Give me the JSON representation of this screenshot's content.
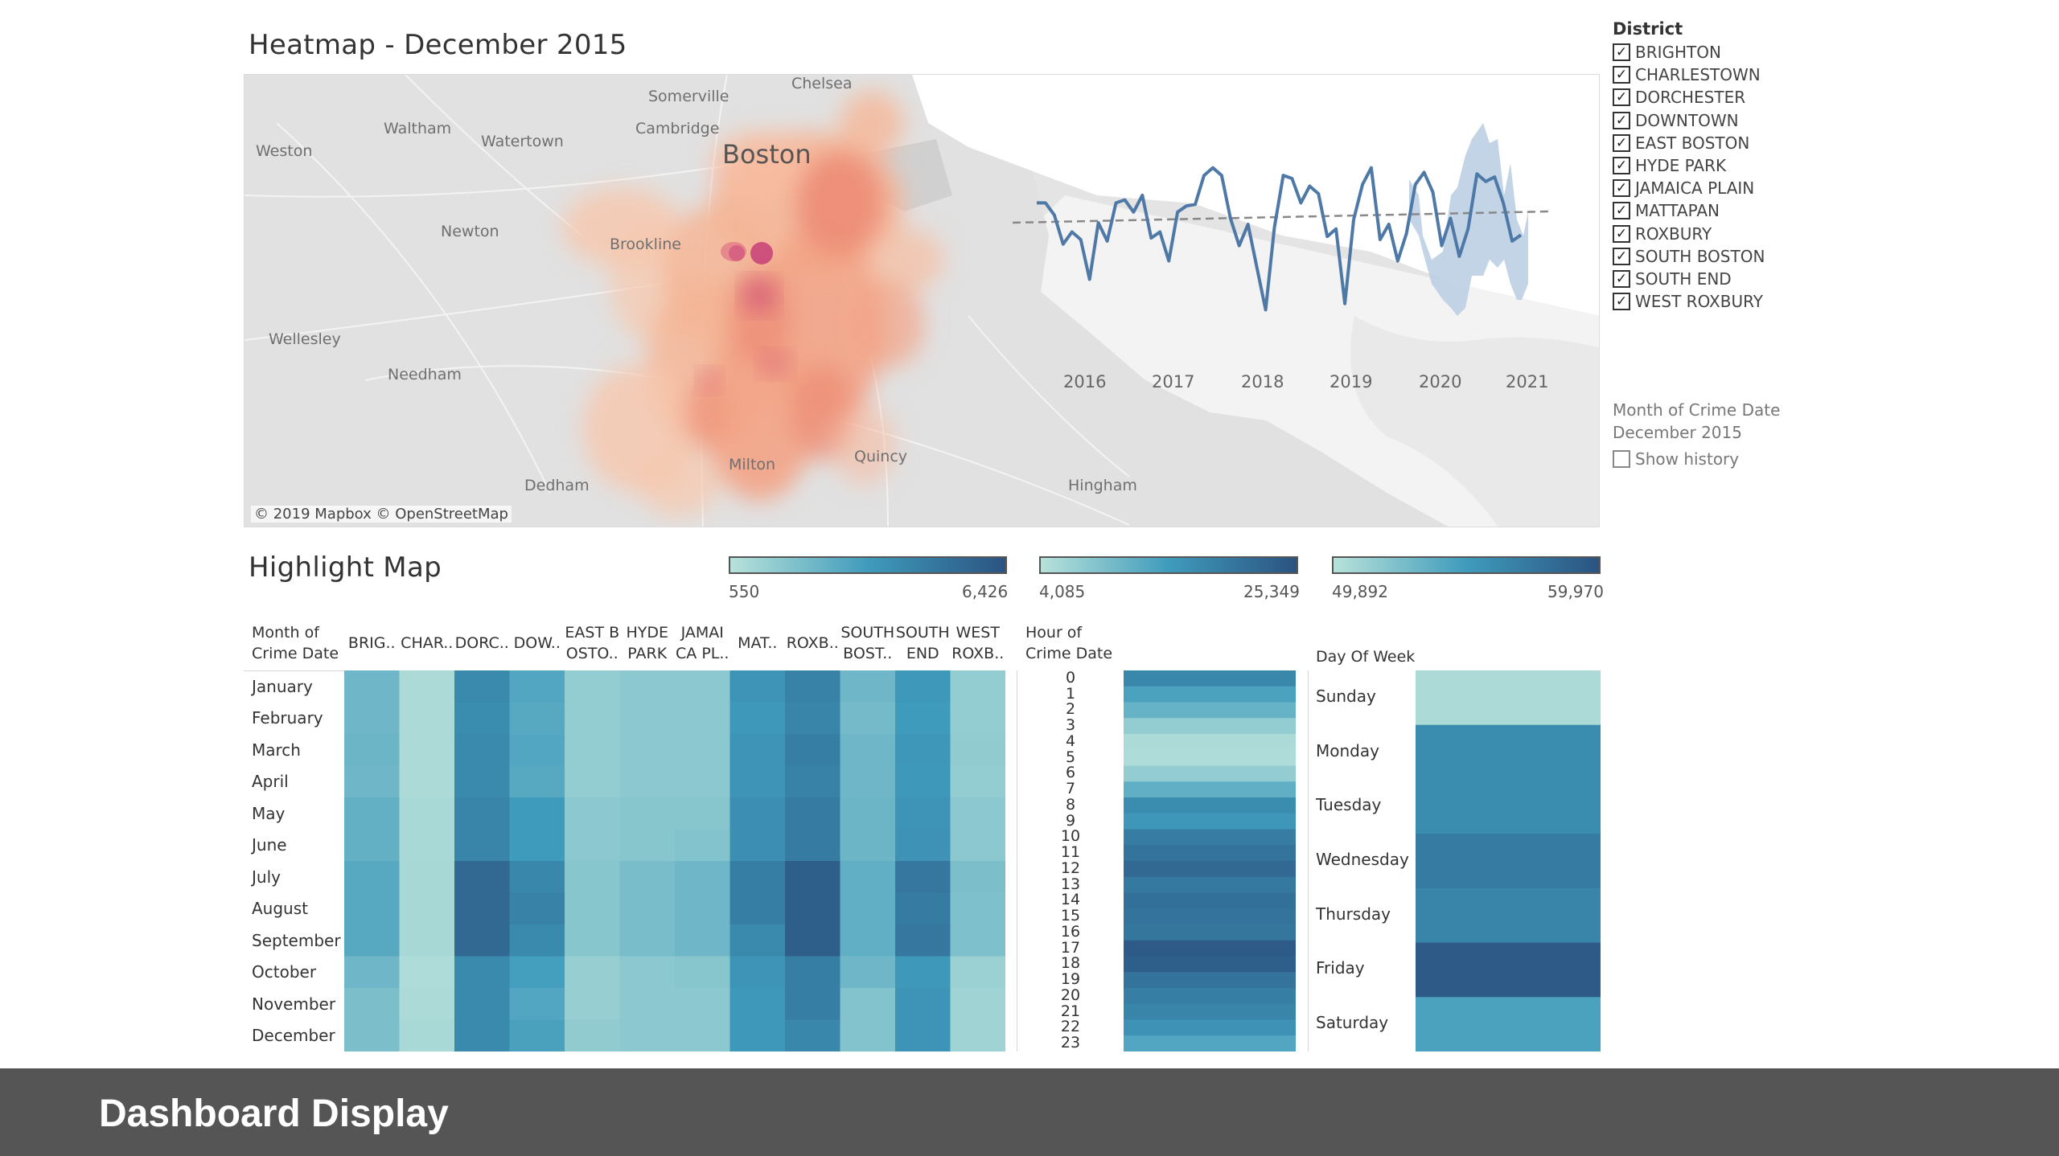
{
  "map_section": {
    "title": "Heatmap - December 2015",
    "attribution": "© 2019 Mapbox © OpenStreetMap",
    "places": {
      "chelsea": "Chelsea",
      "somerville": "Somerville",
      "waltham": "Waltham",
      "watertown": "Watertown",
      "cambridge": "Cambridge",
      "boston": "Boston",
      "weston": "Weston",
      "newton": "Newton",
      "brookline": "Brookline",
      "wellesley": "Wellesley",
      "needham": "Needham",
      "milton": "Milton",
      "quincy": "Quincy",
      "dedham": "Dedham",
      "hingham": "Hingham"
    },
    "trend_years": [
      "2016",
      "2017",
      "2018",
      "2019",
      "2020",
      "2021"
    ],
    "trend_values": [
      0.74,
      0.74,
      0.66,
      0.47,
      0.55,
      0.5,
      0.24,
      0.61,
      0.49,
      0.74,
      0.76,
      0.68,
      0.79,
      0.51,
      0.55,
      0.36,
      0.68,
      0.72,
      0.73,
      0.92,
      0.97,
      0.92,
      0.64,
      0.46,
      0.6,
      0.32,
      0.04,
      0.58,
      0.92,
      0.9,
      0.74,
      0.85,
      0.8,
      0.52,
      0.57,
      0.08,
      0.63,
      0.86,
      0.97,
      0.5,
      0.6,
      0.36,
      0.54,
      0.86,
      0.94,
      0.81,
      0.46,
      0.64,
      0.39,
      0.57,
      0.93,
      0.88,
      0.91,
      0.74,
      0.49,
      0.53
    ],
    "colors": {
      "trend_line": "#4e79a7",
      "trend_band": "#b9cde3",
      "trend_dashed": "#888888",
      "heat_low": "#f9c3a6",
      "heat_high": "#d2627f"
    }
  },
  "filter_panel": {
    "heading": "District",
    "districts": [
      "BRIGHTON",
      "CHARLESTOWN",
      "DORCHESTER",
      "DOWNTOWN",
      "EAST BOSTON",
      "HYDE PARK",
      "JAMAICA PLAIN",
      "MATTAPAN",
      "ROXBURY",
      "SOUTH BOSTON",
      "SOUTH END",
      "WEST ROXBURY"
    ],
    "check_mark": "✓",
    "month_label": "Month of Crime Date",
    "month_value": "December 2015",
    "show_history": "Show history"
  },
  "highlight": {
    "title": "Highlight Map",
    "legends": [
      {
        "min": "550",
        "max": "6,426"
      },
      {
        "min": "4,085",
        "max": "25,349"
      },
      {
        "min": "49,892",
        "max": "59,970"
      }
    ],
    "colors": {
      "light": "#b8e2da",
      "mid": "#3f9bbc",
      "dark": "#2b5381"
    },
    "month_header": [
      "Month of",
      "Crime Date"
    ],
    "district_headers": [
      [
        "BRIG.."
      ],
      [
        "CHAR.."
      ],
      [
        "DORC.."
      ],
      [
        "DOW.."
      ],
      [
        "EAST B",
        "OSTO.."
      ],
      [
        "HYDE",
        "PARK"
      ],
      [
        "JAMAI",
        "CA PL.."
      ],
      [
        "MAT.."
      ],
      [
        "ROXB.."
      ],
      [
        "SOUTH",
        "BOST.."
      ],
      [
        "SOUTH",
        "END"
      ],
      [
        "WEST",
        "ROXB.."
      ]
    ],
    "months": [
      "January",
      "February",
      "March",
      "April",
      "May",
      "June",
      "July",
      "August",
      "September",
      "October",
      "November",
      "December"
    ],
    "district_month_values": [
      [
        0.3,
        0.05,
        0.62,
        0.42,
        0.15,
        0.18,
        0.18,
        0.55,
        0.68,
        0.3,
        0.52,
        0.15
      ],
      [
        0.3,
        0.05,
        0.6,
        0.4,
        0.15,
        0.18,
        0.18,
        0.52,
        0.65,
        0.28,
        0.5,
        0.15
      ],
      [
        0.32,
        0.05,
        0.62,
        0.42,
        0.15,
        0.18,
        0.18,
        0.55,
        0.7,
        0.3,
        0.53,
        0.16
      ],
      [
        0.3,
        0.05,
        0.62,
        0.4,
        0.15,
        0.18,
        0.18,
        0.55,
        0.68,
        0.3,
        0.52,
        0.15
      ],
      [
        0.35,
        0.06,
        0.66,
        0.5,
        0.18,
        0.2,
        0.2,
        0.58,
        0.72,
        0.32,
        0.55,
        0.18
      ],
      [
        0.35,
        0.06,
        0.66,
        0.5,
        0.18,
        0.2,
        0.22,
        0.58,
        0.72,
        0.32,
        0.56,
        0.18
      ],
      [
        0.4,
        0.07,
        0.85,
        0.64,
        0.2,
        0.26,
        0.3,
        0.7,
        0.92,
        0.36,
        0.75,
        0.25
      ],
      [
        0.4,
        0.07,
        0.85,
        0.68,
        0.2,
        0.26,
        0.3,
        0.7,
        0.92,
        0.36,
        0.72,
        0.24
      ],
      [
        0.4,
        0.07,
        0.85,
        0.62,
        0.2,
        0.26,
        0.3,
        0.62,
        0.92,
        0.36,
        0.75,
        0.24
      ],
      [
        0.3,
        0.04,
        0.62,
        0.48,
        0.14,
        0.18,
        0.2,
        0.55,
        0.7,
        0.3,
        0.52,
        0.12
      ],
      [
        0.25,
        0.05,
        0.62,
        0.42,
        0.14,
        0.18,
        0.18,
        0.52,
        0.7,
        0.22,
        0.55,
        0.1
      ],
      [
        0.25,
        0.06,
        0.62,
        0.46,
        0.16,
        0.18,
        0.18,
        0.52,
        0.64,
        0.22,
        0.55,
        0.1
      ]
    ],
    "hour_header": [
      "Hour of",
      "Crime Date"
    ],
    "hours": [
      "0",
      "1",
      "2",
      "3",
      "4",
      "5",
      "6",
      "7",
      "8",
      "9",
      "10",
      "11",
      "12",
      "13",
      "14",
      "15",
      "16",
      "17",
      "18",
      "19",
      "20",
      "21",
      "22",
      "23"
    ],
    "hour_values": [
      0.64,
      0.45,
      0.34,
      0.15,
      0.05,
      0.04,
      0.15,
      0.36,
      0.6,
      0.53,
      0.71,
      0.78,
      0.85,
      0.74,
      0.8,
      0.78,
      0.76,
      0.95,
      0.92,
      0.78,
      0.7,
      0.65,
      0.56,
      0.42
    ],
    "dow_header": "Day Of Week",
    "days": [
      "Sunday",
      "Monday",
      "Tuesday",
      "Wednesday",
      "Thursday",
      "Friday",
      "Saturday"
    ],
    "day_values": [
      0.05,
      0.6,
      0.6,
      0.72,
      0.66,
      0.95,
      0.45
    ]
  },
  "footer": {
    "label": "Dashboard Display"
  }
}
